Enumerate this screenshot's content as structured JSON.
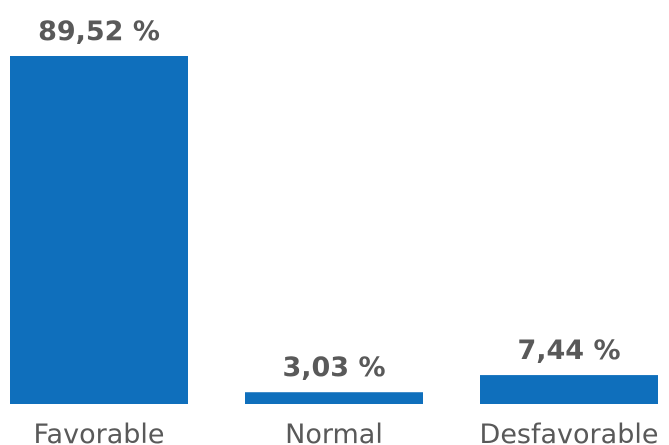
{
  "chart_data": {
    "type": "bar",
    "categories": [
      "Favorable",
      "Normal",
      "Desfavorable"
    ],
    "values": [
      89.52,
      3.03,
      7.44
    ],
    "data_labels": [
      "89,52 %",
      "3,03 %",
      "7,44 %"
    ],
    "title": "",
    "xlabel": "",
    "ylabel": "",
    "ylim": [
      0,
      100
    ],
    "grid": false,
    "legend": "none",
    "colors": {
      "bar": "#0f6fbc",
      "value_label": "#595959",
      "category_label": "#595959"
    }
  }
}
